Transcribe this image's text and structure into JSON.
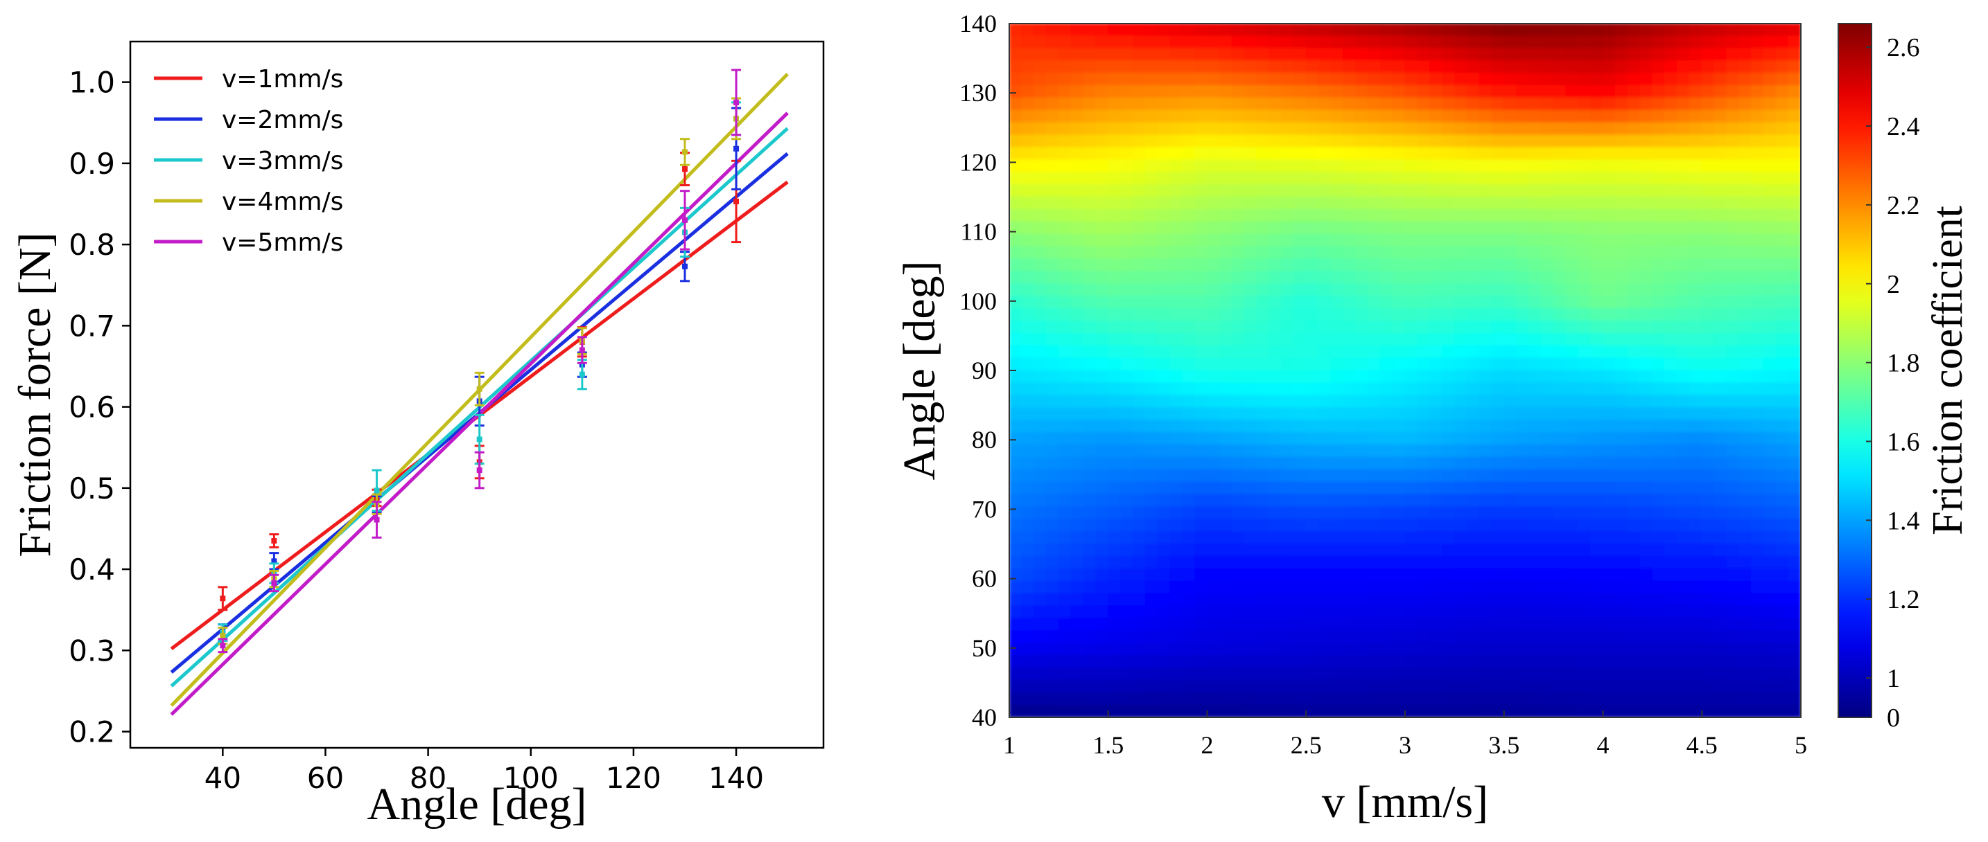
{
  "chart_data": [
    {
      "type": "line",
      "title": "",
      "xlabel": "Angle [deg]",
      "ylabel": "Friction force [N]",
      "xlim": [
        22,
        157
      ],
      "ylim": [
        0.18,
        1.05
      ],
      "xticks": [
        40,
        60,
        80,
        100,
        120,
        140
      ],
      "xtick_labels": [
        "40",
        "60",
        "80",
        "100",
        "120",
        "140"
      ],
      "yticks": [
        0.2,
        0.3,
        0.4,
        0.5,
        0.6,
        0.7,
        0.8,
        0.9,
        1.0
      ],
      "ytick_labels": [
        "0.2",
        "0.3",
        "0.4",
        "0.5",
        "0.6",
        "0.7",
        "0.8",
        "0.9",
        "1.0"
      ],
      "grid": false,
      "legend_position": "top-left",
      "fit_x_range": [
        30,
        150
      ],
      "series": [
        {
          "name": "v=1mm/s",
          "color": "#ee1c1c",
          "fit": [
            0.302,
            0.877
          ],
          "points": [
            [
              40,
              0.364,
              0.014
            ],
            [
              50,
              0.435,
              0.008
            ],
            [
              70,
              0.488,
              0.01
            ],
            [
              90,
              0.532,
              0.02
            ],
            [
              110,
              0.68,
              0.018
            ],
            [
              130,
              0.893,
              0.02
            ],
            [
              140,
              0.853,
              0.05
            ]
          ]
        },
        {
          "name": "v=2mm/s",
          "color": "#1a2fe0",
          "fit": [
            0.273,
            0.912
          ],
          "points": [
            [
              40,
              0.322,
              0.01
            ],
            [
              50,
              0.41,
              0.01
            ],
            [
              70,
              0.48,
              0.01
            ],
            [
              90,
              0.607,
              0.03
            ],
            [
              110,
              0.652,
              0.015
            ],
            [
              130,
              0.773,
              0.018
            ],
            [
              140,
              0.918,
              0.05
            ]
          ]
        },
        {
          "name": "v=3mm/s",
          "color": "#1cc8cc",
          "fit": [
            0.256,
            0.943
          ],
          "points": [
            [
              40,
              0.322,
              0.01
            ],
            [
              50,
              0.395,
              0.012
            ],
            [
              70,
              0.497,
              0.025
            ],
            [
              90,
              0.56,
              0.03
            ],
            [
              110,
              0.64,
              0.018
            ],
            [
              130,
              0.815,
              0.03
            ],
            [
              140,
              0.955,
              0.02
            ]
          ]
        },
        {
          "name": "v=4mm/s",
          "color": "#c2bd1c",
          "fit": [
            0.232,
            1.01
          ],
          "points": [
            [
              40,
              0.318,
              0.01
            ],
            [
              50,
              0.388,
              0.01
            ],
            [
              70,
              0.48,
              0.012
            ],
            [
              90,
              0.622,
              0.02
            ],
            [
              110,
              0.681,
              0.016
            ],
            [
              130,
              0.914,
              0.016
            ],
            [
              140,
              0.955,
              0.025
            ]
          ]
        },
        {
          "name": "v=5mm/s",
          "color": "#c21cc8",
          "fit": [
            0.221,
            0.962
          ],
          "points": [
            [
              40,
              0.306,
              0.008
            ],
            [
              50,
              0.383,
              0.01
            ],
            [
              70,
              0.461,
              0.022
            ],
            [
              90,
              0.522,
              0.022
            ],
            [
              110,
              0.67,
              0.016
            ],
            [
              130,
              0.83,
              0.036
            ],
            [
              140,
              0.975,
              0.04
            ]
          ]
        }
      ]
    },
    {
      "type": "heatmap",
      "title": "",
      "xlabel": "v [mm/s]",
      "ylabel": "Angle [deg]",
      "colorbar_label": "Friction coefficient",
      "colormap": "jet",
      "xlim": [
        1,
        5
      ],
      "ylim": [
        40,
        140
      ],
      "xticks": [
        1,
        1.5,
        2,
        2.5,
        3,
        3.5,
        4,
        4.5,
        5
      ],
      "xtick_labels": [
        "1",
        "1.5",
        "2",
        "2.5",
        "3",
        "3.5",
        "4",
        "4.5",
        "5"
      ],
      "yticks": [
        40,
        50,
        60,
        70,
        80,
        90,
        100,
        110,
        120,
        130,
        140
      ],
      "ytick_labels": [
        "40",
        "50",
        "60",
        "70",
        "80",
        "90",
        "100",
        "110",
        "120",
        "130",
        "140"
      ],
      "colorbar_ticks": [
        0,
        1,
        1.2,
        1.4,
        1.6,
        1.8,
        2,
        2.2,
        2.4,
        2.6
      ],
      "colorbar_tick_labels": [
        "0",
        "1",
        "1.2",
        "1.4",
        "1.6",
        "1.8",
        "2",
        "2.2",
        "2.4",
        "2.6"
      ],
      "color_range": [
        0.9,
        2.66
      ],
      "v": [
        1,
        1.5,
        2,
        2.5,
        3,
        3.5,
        4,
        4.5,
        5
      ],
      "angle": [
        40,
        50,
        60,
        70,
        80,
        90,
        100,
        110,
        120,
        130,
        140
      ],
      "z": [
        [
          0.92,
          0.93,
          0.93,
          0.94,
          0.94,
          0.94,
          0.95,
          0.95,
          0.95
        ],
        [
          1.1,
          1.08,
          1.06,
          1.05,
          1.04,
          1.03,
          1.03,
          1.03,
          1.04
        ],
        [
          1.25,
          1.18,
          1.12,
          1.12,
          1.12,
          1.11,
          1.12,
          1.13,
          1.16
        ],
        [
          1.32,
          1.28,
          1.23,
          1.25,
          1.24,
          1.22,
          1.23,
          1.25,
          1.28
        ],
        [
          1.4,
          1.38,
          1.4,
          1.43,
          1.44,
          1.4,
          1.38,
          1.36,
          1.4
        ],
        [
          1.52,
          1.55,
          1.6,
          1.6,
          1.55,
          1.5,
          1.52,
          1.58,
          1.55
        ],
        [
          1.64,
          1.7,
          1.7,
          1.62,
          1.68,
          1.66,
          1.75,
          1.7,
          1.68
        ],
        [
          1.8,
          1.84,
          1.8,
          1.76,
          1.78,
          1.78,
          1.8,
          1.8,
          1.82
        ],
        [
          2.02,
          2.0,
          1.95,
          1.96,
          1.98,
          2.0,
          1.98,
          2.0,
          2.0
        ],
        [
          2.3,
          2.22,
          2.2,
          2.24,
          2.3,
          2.4,
          2.44,
          2.32,
          2.2
        ],
        [
          2.38,
          2.45,
          2.5,
          2.55,
          2.6,
          2.66,
          2.64,
          2.55,
          2.5
        ]
      ]
    }
  ]
}
